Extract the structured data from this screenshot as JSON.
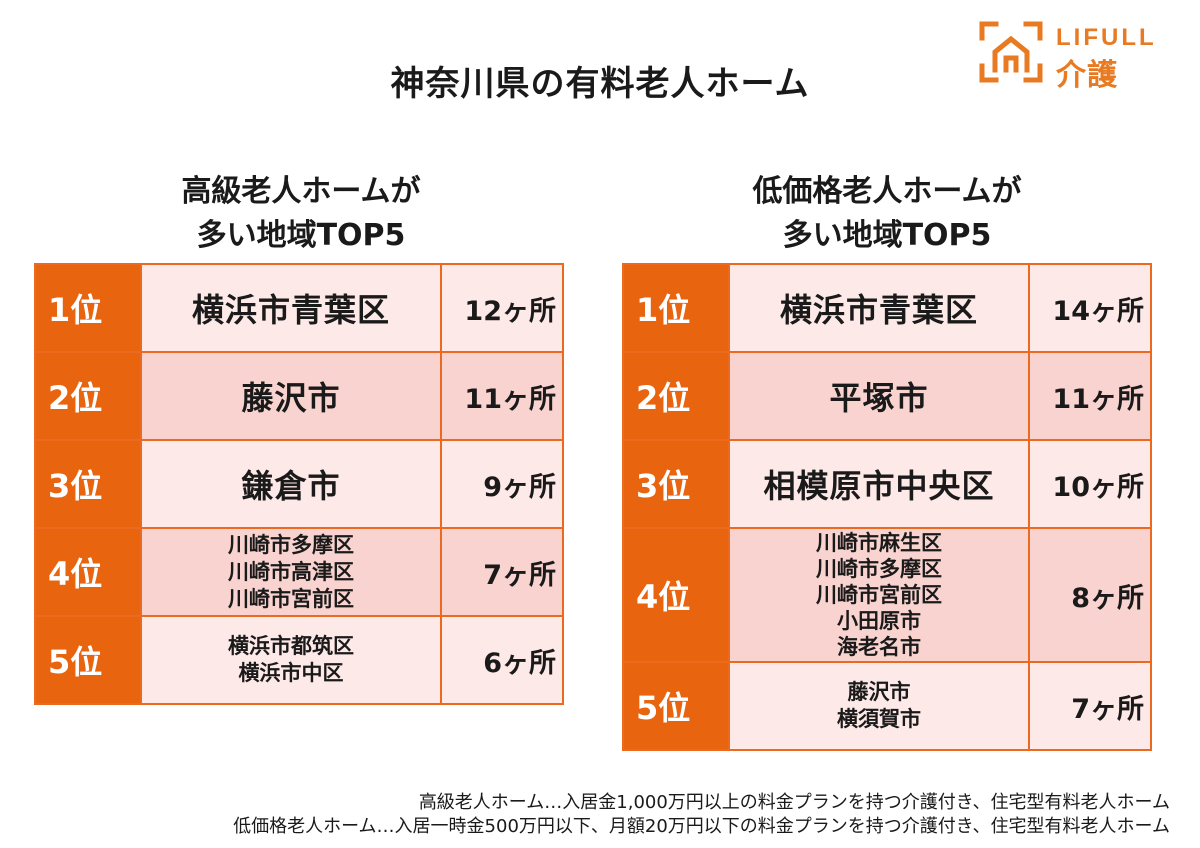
{
  "title": "神奈川県の有料老人ホーム",
  "logo": {
    "wordmark": "LIFULL",
    "sub": "介護",
    "color": "#e87a22"
  },
  "columns": [
    {
      "heading_line1": "高級老人ホームが",
      "heading_line2": "多い地域TOP5",
      "rows": [
        {
          "rank": "1位",
          "areas": [
            "横浜市青葉区"
          ],
          "count": "12ヶ所"
        },
        {
          "rank": "2位",
          "areas": [
            "藤沢市"
          ],
          "count": "11ヶ所"
        },
        {
          "rank": "3位",
          "areas": [
            "鎌倉市"
          ],
          "count": "9ヶ所"
        },
        {
          "rank": "4位",
          "areas": [
            "川崎市多摩区",
            "川崎市高津区",
            "川崎市宮前区"
          ],
          "count": "7ヶ所"
        },
        {
          "rank": "5位",
          "areas": [
            "横浜市都筑区",
            "横浜市中区"
          ],
          "count": "6ヶ所"
        }
      ]
    },
    {
      "heading_line1": "低価格老人ホームが",
      "heading_line2": "多い地域TOP5",
      "rows": [
        {
          "rank": "1位",
          "areas": [
            "横浜市青葉区"
          ],
          "count": "14ヶ所"
        },
        {
          "rank": "2位",
          "areas": [
            "平塚市"
          ],
          "count": "11ヶ所"
        },
        {
          "rank": "3位",
          "areas": [
            "相模原市中央区"
          ],
          "count": "10ヶ所"
        },
        {
          "rank": "4位",
          "areas": [
            "川崎市麻生区",
            "川崎市多摩区",
            "川崎市宮前区",
            "小田原市",
            "海老名市"
          ],
          "count": "8ヶ所"
        },
        {
          "rank": "5位",
          "areas": [
            "藤沢市",
            "横須賀市"
          ],
          "count": "7ヶ所"
        }
      ]
    }
  ],
  "footnotes": [
    "高級老人ホーム…入居金1,000万円以上の料金プランを持つ介護付き、住宅型有料老人ホーム",
    "低価格老人ホーム…入居一時金500万円以下、月額20万円以下の料金プランを持つ介護付き、住宅型有料老人ホーム"
  ],
  "colors": {
    "rank_bg": "#e8640f",
    "row_light": "#fde9e7",
    "row_dark": "#f9d3cf"
  }
}
